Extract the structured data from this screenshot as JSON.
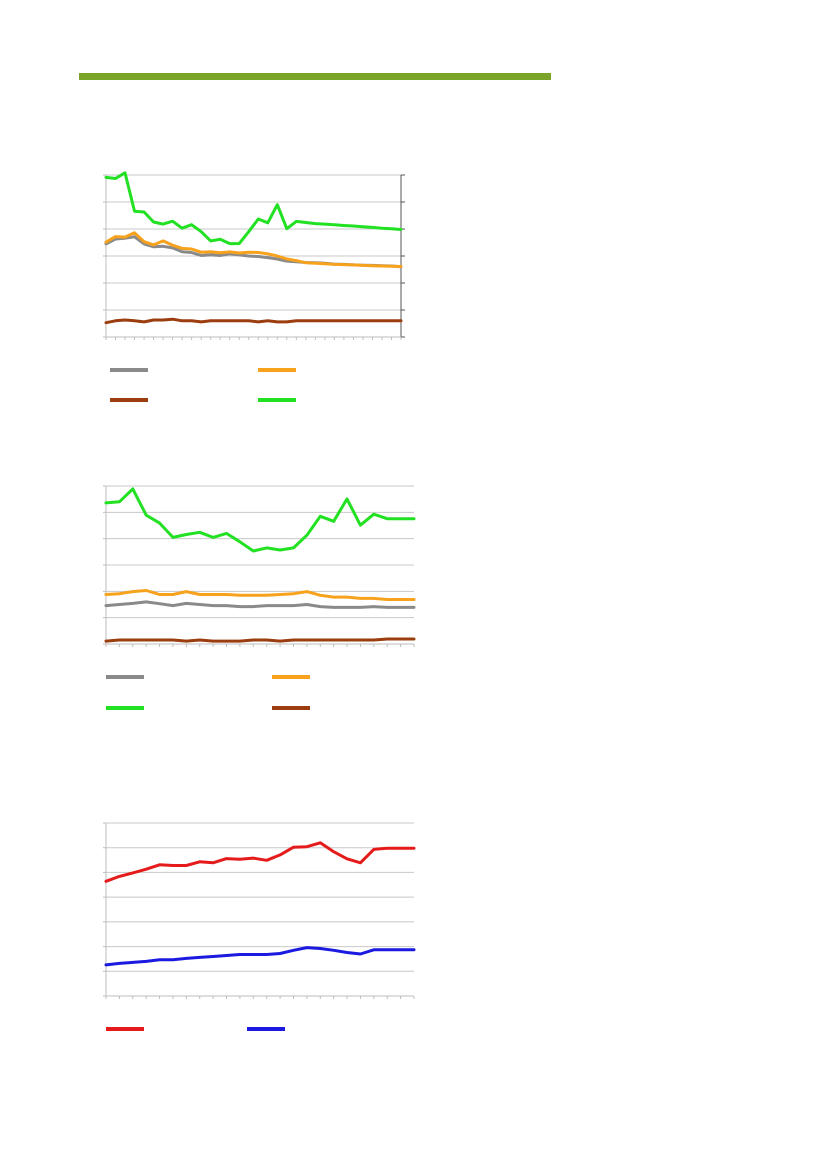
{
  "page": {
    "rule_color": "#7aa428"
  },
  "chart_data": [
    {
      "type": "line",
      "title": "",
      "xlabel": "",
      "ylabel": "",
      "x": [
        1,
        2,
        3,
        4,
        5,
        6,
        7,
        8,
        9,
        10,
        11,
        12,
        13,
        14,
        15,
        16,
        17,
        18,
        19,
        20,
        21,
        22,
        23,
        24,
        25,
        26,
        27,
        28,
        29,
        30,
        31,
        32
      ],
      "ylim": [
        0,
        60
      ],
      "grid": true,
      "legend": "bottom",
      "series": [
        {
          "color": "#8a8a8a",
          "values": [
            34.5,
            36.3,
            36.6,
            37.1,
            34.5,
            33.4,
            33.6,
            33.0,
            31.6,
            31.3,
            30.2,
            30.4,
            30.2,
            30.8,
            30.4,
            30.0,
            29.8,
            29.4,
            28.9,
            28.1,
            27.9,
            27.6,
            27.5,
            27.3,
            27.0,
            26.9,
            26.7,
            26.6,
            26.5,
            26.4,
            26.3,
            26.0
          ]
        },
        {
          "color": "#f7a21c",
          "values": [
            35.1,
            37.2,
            37.0,
            38.6,
            35.3,
            34.1,
            35.6,
            34.0,
            32.8,
            32.6,
            31.4,
            31.6,
            31.2,
            31.5,
            31.1,
            31.4,
            31.3,
            30.8,
            30.0,
            28.9,
            28.3,
            27.5,
            27.3,
            27.1,
            26.9,
            26.8,
            26.7,
            26.5,
            26.4,
            26.3,
            26.2,
            26.1
          ]
        },
        {
          "color": "#9b3d0e",
          "values": [
            5.3,
            6.0,
            6.3,
            6.0,
            5.6,
            6.3,
            6.3,
            6.6,
            6.0,
            6.0,
            5.6,
            6.0,
            6.0,
            6.0,
            6.0,
            6.0,
            5.6,
            6.0,
            5.6,
            5.6,
            6.0,
            6.0,
            6.0,
            6.0,
            6.0,
            6.0,
            6.0,
            6.0,
            6.0,
            6.0,
            6.0,
            6.0
          ]
        },
        {
          "color": "#22e022",
          "values": [
            59.1,
            58.7,
            60.8,
            46.6,
            46.3,
            42.6,
            41.8,
            42.9,
            40.3,
            41.6,
            39.0,
            35.6,
            36.2,
            34.6,
            34.6,
            39.0,
            43.7,
            42.3,
            49.0,
            40.1,
            42.8,
            42.4,
            42.0,
            41.8,
            41.6,
            41.3,
            41.1,
            40.8,
            40.6,
            40.3,
            40.1,
            39.8
          ]
        }
      ]
    },
    {
      "type": "line",
      "title": "",
      "xlabel": "",
      "ylabel": "",
      "x": [
        1,
        2,
        3,
        4,
        5,
        6,
        7,
        8,
        9,
        10,
        11,
        12,
        13,
        14,
        15,
        16,
        17,
        18,
        19,
        20,
        21,
        22,
        23,
        24
      ],
      "ylim": [
        0,
        60
      ],
      "grid": true,
      "legend": "bottom",
      "series": [
        {
          "color": "#8a8a8a",
          "values": [
            14.6,
            15.0,
            15.4,
            16.0,
            15.3,
            14.6,
            15.4,
            15.0,
            14.6,
            14.6,
            14.2,
            14.2,
            14.6,
            14.6,
            14.6,
            15.0,
            14.2,
            13.9,
            13.9,
            13.9,
            14.2,
            13.9,
            13.9,
            13.9
          ]
        },
        {
          "color": "#f7a21c",
          "values": [
            18.8,
            19.1,
            19.9,
            20.3,
            18.8,
            18.8,
            19.9,
            18.8,
            18.8,
            18.8,
            18.5,
            18.5,
            18.5,
            18.8,
            19.1,
            19.9,
            18.5,
            17.8,
            17.8,
            17.3,
            17.3,
            16.9,
            16.9,
            16.9
          ]
        },
        {
          "color": "#22e022",
          "values": [
            53.6,
            54.0,
            58.9,
            48.9,
            45.9,
            40.5,
            41.6,
            42.4,
            40.5,
            42.0,
            38.8,
            35.3,
            36.5,
            35.7,
            36.5,
            41.3,
            48.5,
            46.6,
            55.1,
            45.1,
            49.3,
            47.6,
            47.6,
            47.6
          ]
        },
        {
          "color": "#9b3d0e",
          "values": [
            1.1,
            1.5,
            1.5,
            1.5,
            1.5,
            1.5,
            1.1,
            1.5,
            1.1,
            1.1,
            1.1,
            1.5,
            1.5,
            1.1,
            1.5,
            1.5,
            1.5,
            1.5,
            1.5,
            1.5,
            1.5,
            1.9,
            1.9,
            1.9
          ]
        }
      ]
    },
    {
      "type": "line",
      "title": "",
      "xlabel": "",
      "ylabel": "",
      "x": [
        1,
        2,
        3,
        4,
        5,
        6,
        7,
        8,
        9,
        10,
        11,
        12,
        13,
        14,
        15,
        16,
        17,
        18,
        19,
        20,
        21,
        22,
        23,
        24
      ],
      "ylim": [
        0,
        70
      ],
      "grid": true,
      "legend": "bottom",
      "series": [
        {
          "color": "#e51b1b",
          "values": [
            46.4,
            48.4,
            49.8,
            51.3,
            53.1,
            52.8,
            52.8,
            54.3,
            53.9,
            55.6,
            55.3,
            55.8,
            54.9,
            57.1,
            60.2,
            60.4,
            62.0,
            58.4,
            55.5,
            53.9,
            59.3,
            59.8,
            59.8,
            59.8
          ]
        },
        {
          "color": "#1a1ae0",
          "values": [
            12.6,
            13.2,
            13.6,
            14.0,
            14.7,
            14.7,
            15.2,
            15.6,
            16.0,
            16.4,
            16.8,
            16.8,
            16.8,
            17.2,
            18.5,
            19.6,
            19.2,
            18.5,
            17.6,
            17.0,
            18.7,
            18.7,
            18.7,
            18.7
          ]
        }
      ]
    }
  ]
}
